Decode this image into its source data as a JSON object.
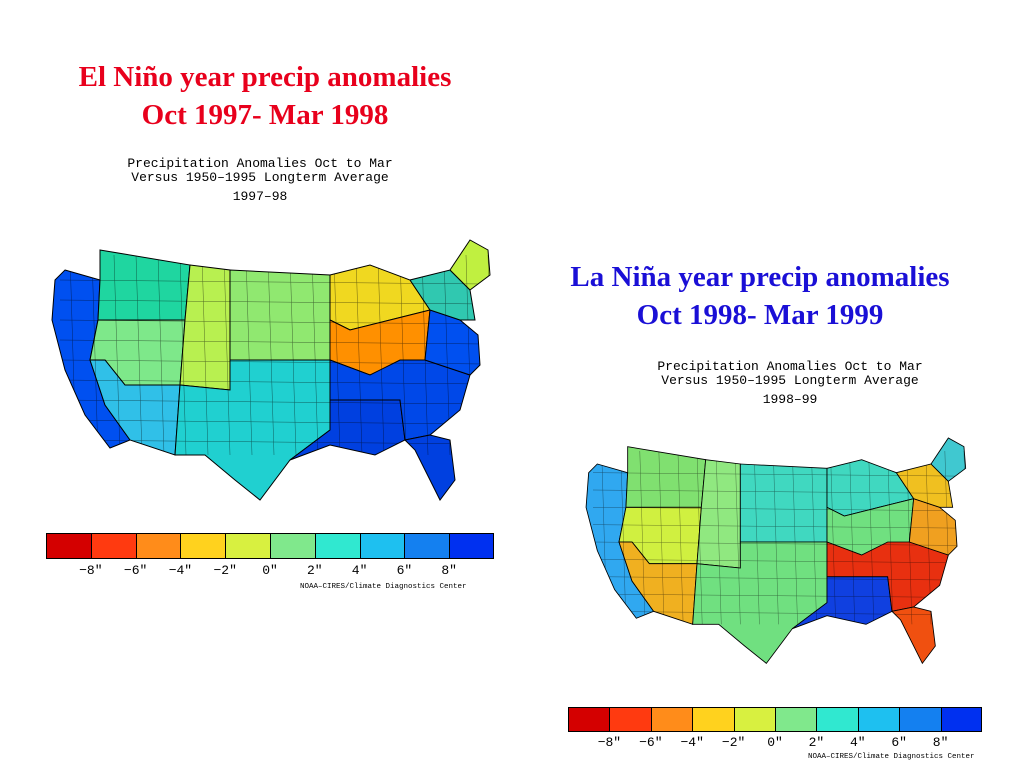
{
  "slide": {
    "nino_title_line1": "El Niño year precip anomalies",
    "nino_title_line2": "Oct 1997- Mar 1998",
    "nina_title_line1": "La Niña year precip anomalies",
    "nina_title_line2": "Oct 1998- Mar 1999",
    "nino_color": "#e8001c",
    "nina_color": "#1a0fd6"
  },
  "maps": [
    {
      "heading1": "Precipitation Anomalies Oct to Mar",
      "heading2": "Versus 1950–1995 Longterm Average",
      "period": "1997–98",
      "regions": {
        "west_coast": "#0050f0",
        "northwest_interior": "#1fd6a0",
        "great_basin": "#7ee88a",
        "southwest": "#30c0e8",
        "rockies": "#b8f050",
        "northern_plains": "#90e870",
        "southern_plains": "#20d0d0",
        "gulf_coast": "#0040e0",
        "ohio_valley": "#ff9000",
        "great_lakes": "#f0d820",
        "southeast": "#0048e8",
        "mid_atlantic": "#0050f0",
        "northeast": "#30c8b0",
        "florida": "#0040e0",
        "maine": "#c0f040"
      }
    },
    {
      "heading1": "Precipitation Anomalies Oct to Mar",
      "heading2": "Versus 1950–1995 Longterm Average",
      "period": "1998–99",
      "regions": {
        "west_coast": "#30a8f0",
        "northwest_interior": "#80e070",
        "great_basin": "#d0f040",
        "southwest": "#f0b020",
        "rockies": "#90e880",
        "northern_plains": "#40d8c0",
        "southern_plains": "#70e080",
        "gulf_coast": "#1040e0",
        "ohio_valley": "#70e080",
        "great_lakes": "#40d8c0",
        "southeast": "#e83010",
        "mid_atlantic": "#f0a020",
        "northeast": "#f0c020",
        "florida": "#f05010",
        "maine": "#40c8d0"
      }
    }
  ],
  "legend": {
    "colors": [
      "#d40000",
      "#ff3a10",
      "#ff8c1a",
      "#ffd21e",
      "#d8f040",
      "#80e88c",
      "#30e8d0",
      "#1ec0f0",
      "#1480f0",
      "#0030f0"
    ],
    "ticks": [
      "−8″",
      "−6″",
      "−4″",
      "−2″",
      "0″",
      "2″",
      "4″",
      "6″",
      "8″"
    ],
    "credit": "NOAA–CIRES/Climate Diagnostics Center"
  }
}
